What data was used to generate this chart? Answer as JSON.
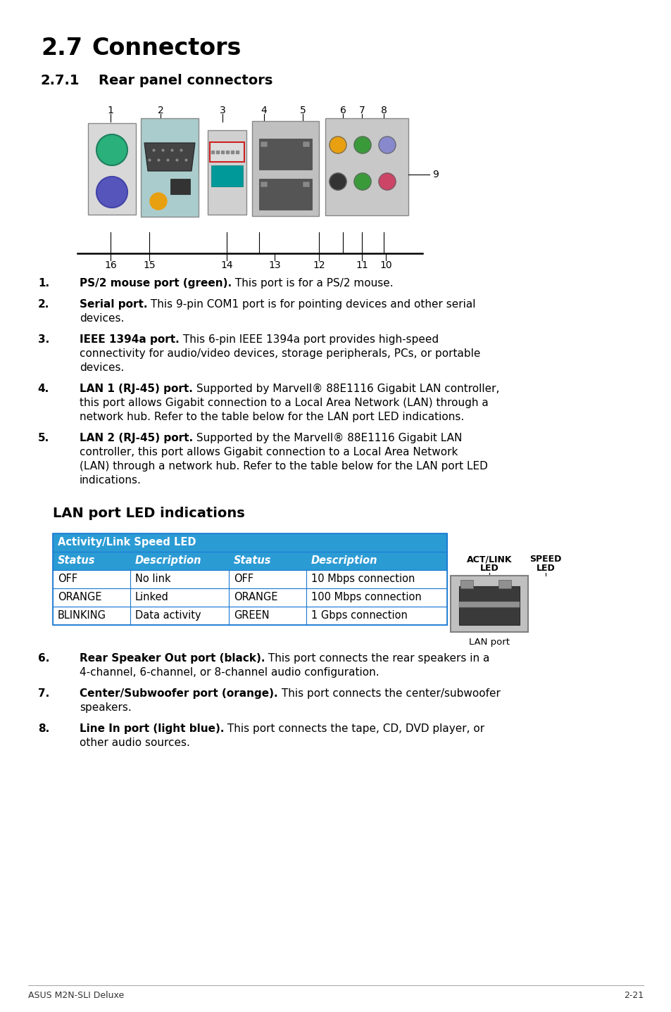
{
  "title_number": "2.7",
  "title_text": "Connectors",
  "subtitle_number": "2.7.1",
  "subtitle_text": "Rear panel connectors",
  "section_heading": "LAN port LED indications",
  "table_header1": "Activity/Link Speed LED",
  "table_col_headers": [
    "Status",
    "Description",
    "Status",
    "Description"
  ],
  "table_rows": [
    [
      "OFF",
      "No link",
      "OFF",
      "10 Mbps connection"
    ],
    [
      "ORANGE",
      "Linked",
      "ORANGE",
      "100 Mbps connection"
    ],
    [
      "BLINKING",
      "Data activity",
      "GREEN",
      "1 Gbps connection"
    ]
  ],
  "table_blue": "#2b9bd4",
  "table_border": "#1a7ad4",
  "items": [
    {
      "num": "1.",
      "bold": "PS/2 mouse port (green).",
      "normal": " This port is for a PS/2 mouse."
    },
    {
      "num": "2.",
      "bold": "Serial port.",
      "normal": " This 9-pin COM1 port is for pointing devices and other serial\ndevices."
    },
    {
      "num": "3.",
      "bold": "IEEE 1394a port.",
      "normal": " This 6-pin IEEE 1394a port provides high-speed\nconnectivity for audio/video devices, storage peripherals, PCs, or portable\ndevices."
    },
    {
      "num": "4.",
      "bold": "LAN 1 (RJ-45) port.",
      "normal": " Supported by Marvell® 88E1116 Gigabit LAN controller,\nthis port allows Gigabit connection to a Local Area Network (LAN) through a\nnetwork hub. Refer to the table below for the LAN port LED indications."
    },
    {
      "num": "5.",
      "bold": "LAN 2 (RJ-45) port.",
      "normal": " Supported by the Marvell® 88E1116 Gigabit LAN\ncontroller, this port allows Gigabit connection to a Local Area Network\n(LAN) through a network hub. Refer to the table below for the LAN port LED\nindications."
    },
    {
      "num": "6.",
      "bold": "Rear Speaker Out port (black).",
      "normal": " This port connects the rear speakers in a\n4-channel, 6-channel, or 8-channel audio configuration."
    },
    {
      "num": "7.",
      "bold": "Center/Subwoofer port (orange).",
      "normal": " This port connects the center/subwoofer\nspeakers."
    },
    {
      "num": "8.",
      "bold": "Line In port (light blue).",
      "normal": " This port connects the tape, CD, DVD player, or\nother audio sources."
    }
  ],
  "footer_left": "ASUS M2N-SLI Deluxe",
  "footer_right": "2-21",
  "bg_color": "#ffffff"
}
